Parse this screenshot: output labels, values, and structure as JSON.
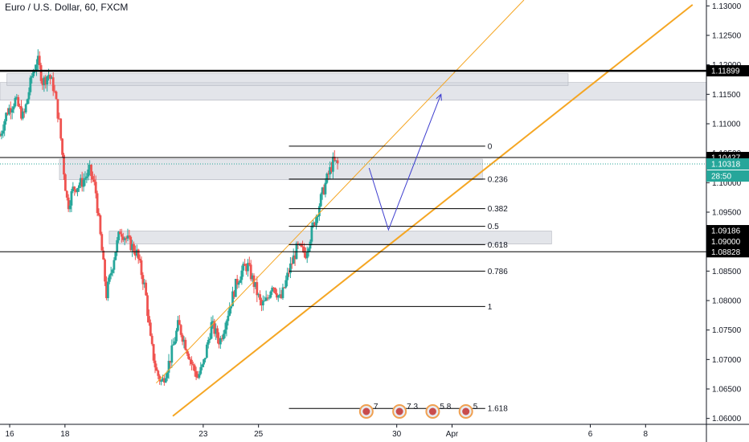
{
  "chart_data": {
    "type": "candlestick",
    "title": "Euro / U.S. Dollar, 60, FXCM",
    "ylim": [
      1.059,
      1.131
    ],
    "y_ticks": [
      "1.13000",
      "1.12500",
      "1.12000",
      "1.11500",
      "1.11000",
      "1.10500",
      "1.10000",
      "1.09500",
      "1.09000",
      "1.08500",
      "1.08000",
      "1.07500",
      "1.07000",
      "1.06500",
      "1.06000"
    ],
    "y_tick_values": [
      1.13,
      1.125,
      1.12,
      1.115,
      1.11,
      1.105,
      1.1,
      1.095,
      1.09,
      1.085,
      1.08,
      1.075,
      1.07,
      1.065,
      1.06
    ],
    "x_ticks": [
      {
        "label": "16",
        "day": 16
      },
      {
        "label": "18",
        "day": 18
      },
      {
        "label": "23",
        "day": 23
      },
      {
        "label": "25",
        "day": 25
      },
      {
        "label": "30",
        "day": 30
      },
      {
        "label": "Apr",
        "day": 32
      },
      {
        "label": "6",
        "day": 37
      },
      {
        "label": "8",
        "day": 39
      }
    ],
    "xlim_days": [
      15.65,
      41.2
    ],
    "close_path": [
      [
        15.65,
        1.108
      ],
      [
        15.9,
        1.112
      ],
      [
        16.2,
        1.114
      ],
      [
        16.5,
        1.111
      ],
      [
        16.8,
        1.118
      ],
      [
        17.0,
        1.121
      ],
      [
        17.2,
        1.117
      ],
      [
        17.4,
        1.1185
      ],
      [
        17.6,
        1.116
      ],
      [
        17.8,
        1.11
      ],
      [
        18.0,
        1.1
      ],
      [
        18.1,
        1.096
      ],
      [
        18.3,
        1.099
      ],
      [
        18.6,
        1.1
      ],
      [
        18.9,
        1.102
      ],
      [
        19.1,
        1.099
      ],
      [
        19.3,
        1.09
      ],
      [
        19.5,
        1.081
      ],
      [
        19.8,
        1.088
      ],
      [
        20.0,
        1.092
      ],
      [
        20.3,
        1.09
      ],
      [
        20.6,
        1.088
      ],
      [
        20.9,
        1.082
      ],
      [
        21.1,
        1.073
      ],
      [
        21.3,
        1.068
      ],
      [
        21.5,
        1.066
      ],
      [
        21.8,
        1.07
      ],
      [
        22.1,
        1.076
      ],
      [
        22.4,
        1.072
      ],
      [
        22.6,
        1.069
      ],
      [
        22.8,
        1.067
      ],
      [
        23.0,
        1.069
      ],
      [
        23.3,
        1.076
      ],
      [
        23.6,
        1.073
      ],
      [
        23.9,
        1.078
      ],
      [
        24.2,
        1.083
      ],
      [
        24.4,
        1.085
      ],
      [
        24.6,
        1.086
      ],
      [
        24.9,
        1.082
      ],
      [
        25.1,
        1.079
      ],
      [
        25.3,
        1.08
      ],
      [
        25.5,
        1.083
      ],
      [
        25.8,
        1.08
      ],
      [
        26.1,
        1.085
      ],
      [
        26.4,
        1.089
      ],
      [
        26.7,
        1.088
      ],
      [
        27.0,
        1.093
      ],
      [
        27.3,
        1.098
      ],
      [
        27.5,
        1.101
      ],
      [
        27.7,
        1.1035
      ],
      [
        27.9,
        1.103
      ]
    ],
    "horizontal_levels": [
      {
        "label": "1.11899",
        "value": 1.11899,
        "style": "thick-black"
      },
      {
        "label": "1.10427",
        "value": 1.10427,
        "style": "black"
      },
      {
        "label": "1.10318",
        "value": 1.10318,
        "style": "teal-dotted",
        "countdown": "28:50"
      },
      {
        "label": "1.09186",
        "value": 1.09186,
        "style": "tag-only"
      },
      {
        "label": "1.09000",
        "value": 1.09,
        "style": "tag-only"
      },
      {
        "label": "1.08828",
        "value": 1.08828,
        "style": "black"
      }
    ],
    "zones": [
      {
        "day_start": 15.65,
        "day_end": 41.2,
        "top": 1.117,
        "bottom": 1.114
      },
      {
        "day_start": 15.9,
        "day_end": 36.2,
        "top": 1.1185,
        "bottom": 1.1165
      },
      {
        "day_start": 17.8,
        "day_end": 33.1,
        "top": 1.104,
        "bottom": 1.1005
      },
      {
        "day_start": 19.6,
        "day_end": 35.6,
        "top": 1.0918,
        "bottom": 1.0896
      }
    ],
    "fibonacci": {
      "day_start": 26.1,
      "day_end": 33.2,
      "levels": [
        {
          "label": "0",
          "value": 1.1062
        },
        {
          "label": "0.236",
          "value": 1.1006
        },
        {
          "label": "0.382",
          "value": 1.0956
        },
        {
          "label": "0.5",
          "value": 1.0926
        },
        {
          "label": "0.618",
          "value": 1.0895
        },
        {
          "label": "0.786",
          "value": 1.085
        },
        {
          "label": "1",
          "value": 1.079
        },
        {
          "label": "1.618",
          "value": 1.0617
        }
      ]
    },
    "trendlines": [
      {
        "from": [
          21.9,
          1.0604
        ],
        "to": [
          40.7,
          1.1302
        ],
        "style": "orange-thick"
      },
      {
        "from": [
          21.3,
          1.066
        ],
        "to": [
          34.6,
          1.131
        ],
        "style": "orange-thin"
      }
    ],
    "projection": [
      [
        29.0,
        1.1025
      ],
      [
        29.7,
        1.092
      ],
      [
        31.6,
        1.115
      ]
    ],
    "event_badges": [
      {
        "day": 28.9,
        "text": "7"
      },
      {
        "day": 30.1,
        "text": "7 3"
      },
      {
        "day": 31.3,
        "text": "5 8"
      },
      {
        "day": 32.5,
        "text": "5"
      }
    ]
  },
  "colors": {
    "up": "#26a69a",
    "down": "#ef5350",
    "zone": "#d1d4dc",
    "trend": "#f5a623",
    "projection": "#3f3fcf",
    "price_tag": "#26a69a"
  }
}
